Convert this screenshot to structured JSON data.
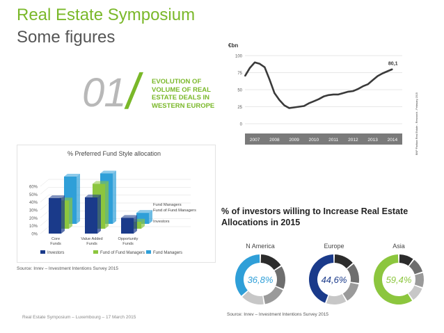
{
  "header": {
    "title": "Real Estate Symposium",
    "subtitle": "Some figures"
  },
  "section": {
    "number": "01",
    "slash": "/",
    "heading_lines": [
      "EVOLUTION OF",
      "VOLUME OF REAL",
      "ESTATE DEALS IN",
      "WESTERN EUROPE"
    ]
  },
  "survey_title": "% of investors willing to Increase Real Estate Allocations in 2015",
  "source_left": "Source: Inrev – Investment Intentions Survey 2015",
  "source_right": "Source: Inrev – Investment Intentions Survey 2015",
  "footer": "Real Estate Symposium – Luxembourg – 17 March 2015",
  "colors": {
    "accent_green": "#7ab829",
    "navy": "#1a3a8a",
    "blue": "#2f9fd8",
    "line": "#3a3a3a"
  },
  "chart_data": [
    {
      "type": "line",
      "ylabel": "€bn",
      "x_ticks": [
        "2007",
        "2008",
        "2009",
        "2010",
        "2011",
        "2012",
        "2013",
        "2014"
      ],
      "y_ticks": [
        0,
        25,
        50,
        75,
        100
      ],
      "ylim": [
        0,
        100
      ],
      "annotation": "80,1",
      "side_note": "BNP Paribas Real Estate - Research - February 2015",
      "x": [
        2007.0,
        2007.25,
        2007.5,
        2007.75,
        2008.0,
        2008.25,
        2008.5,
        2008.75,
        2009.0,
        2009.25,
        2009.5,
        2009.75,
        2010.0,
        2010.25,
        2010.5,
        2010.75,
        2011.0,
        2011.25,
        2011.5,
        2011.75,
        2012.0,
        2012.25,
        2012.5,
        2012.75,
        2013.0,
        2013.25,
        2013.5,
        2013.75,
        2014.0,
        2014.25,
        2014.5
      ],
      "values": [
        70,
        82,
        90,
        88,
        83,
        65,
        45,
        35,
        27,
        23,
        24,
        25,
        26,
        30,
        33,
        36,
        40,
        42,
        43,
        43,
        45,
        47,
        48,
        51,
        55,
        58,
        64,
        70,
        74,
        77,
        80.1
      ]
    },
    {
      "type": "bar",
      "title": "% Preferred Fund Style allocation",
      "categories": [
        "Core Funds",
        "Value Added Funds",
        "Opportunity Funds"
      ],
      "ylim": [
        0,
        60
      ],
      "y_ticks": [
        "0%",
        "10%",
        "20%",
        "30%",
        "40%",
        "50%",
        "60%"
      ],
      "series": [
        {
          "name": "Investors",
          "values": [
            45,
            46,
            20
          ],
          "color": "#1a3a8a"
        },
        {
          "name": "Fund of Fund Managers",
          "values": [
            36,
            57,
            9
          ],
          "color": "#8cc63e"
        },
        {
          "name": "Fund Managers",
          "values": [
            60,
            64,
            14
          ],
          "color": "#2f9fd8"
        }
      ],
      "depth_labels": [
        "Fund Managers",
        "Fund of Fund Managers",
        "Investors"
      ]
    },
    {
      "type": "pie",
      "variant": "donut",
      "regions": [
        {
          "name": "N America",
          "value": 36.8,
          "label": "36,8%",
          "highlight_color": "#2f9fd8"
        },
        {
          "name": "Europe",
          "value": 44.6,
          "label": "44,6%",
          "highlight_color": "#1a3a8a"
        },
        {
          "name": "Asia",
          "value": 59.4,
          "label": "59,4%",
          "highlight_color": "#8cc63e"
        }
      ]
    }
  ]
}
